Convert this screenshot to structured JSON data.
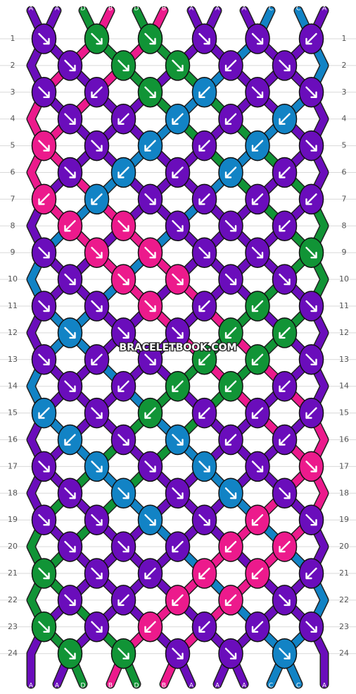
{
  "colors": {
    "A": "#6a0dbb",
    "B": "#ec1a8c",
    "C": "#1283c5",
    "D": "#119436"
  },
  "watermark": "BRACELETBOOK.COM",
  "top_labels": [
    "A",
    "A",
    "D",
    "B",
    "D",
    "B",
    "A",
    "A",
    "A",
    "C",
    "C",
    "A"
  ],
  "bottom_labels": [
    "A",
    "A",
    "D",
    "B",
    "D",
    "B",
    "A",
    "A",
    "A",
    "C",
    "C",
    "A"
  ],
  "row_labels": [
    "1",
    "2",
    "3",
    "4",
    "5",
    "6",
    "7",
    "8",
    "9",
    "10",
    "11",
    "12",
    "13",
    "14",
    "15",
    "16",
    "17",
    "18",
    "19",
    "20",
    "21",
    "22",
    "23",
    "24"
  ],
  "knot_rows": [
    [
      {
        "c": "A",
        "d": "R"
      },
      {
        "c": "D",
        "d": "R"
      },
      {
        "c": "D",
        "d": "R"
      },
      {
        "c": "A",
        "d": "R"
      }
    ],
    [
      {
        "c": "A",
        "d": "R"
      },
      {
        "c": "D",
        "d": "R"
      },
      {
        "c": "D",
        "d": "R"
      },
      {
        "c": "A",
        "d": "L"
      }
    ],
    [
      {
        "c": "A",
        "d": "R"
      },
      {
        "c": "D",
        "d": "R"
      },
      {
        "c": "A",
        "d": "L"
      },
      {
        "c": "C",
        "d": "L"
      }
    ],
    [
      {
        "c": "A",
        "d": "R"
      },
      {
        "c": "A",
        "d": "L"
      },
      {
        "c": "C",
        "d": "L"
      },
      {
        "c": "C",
        "d": "L"
      }
    ],
    [
      {
        "c": "A",
        "d": "R"
      },
      {
        "c": "C",
        "d": "L"
      },
      {
        "c": "C",
        "d": "L"
      },
      {
        "c": "A",
        "d": "L"
      }
    ],
    [
      {
        "c": "A",
        "d": "R"
      },
      {
        "c": "C",
        "d": "L"
      },
      {
        "c": "C",
        "d": "L"
      },
      {
        "c": "A",
        "d": "L"
      }
    ],
    [
      {
        "c": "B",
        "d": "L"
      },
      {
        "c": "A",
        "d": "R"
      },
      {
        "c": "C",
        "d": "L"
      },
      {
        "c": "A",
        "d": "L"
      }
    ],
    [
      {
        "c": "B",
        "d": "L"
      },
      {
        "c": "B",
        "d": "R"
      },
      {
        "c": "A",
        "d": "R"
      },
      {
        "c": "A",
        "d": "R"
      }
    ],
    [
      {
        "c": "A",
        "d": "R"
      },
      {
        "c": "B",
        "d": "R"
      },
      {
        "c": "B",
        "d": "R"
      },
      {
        "c": "A",
        "d": "R"
      }
    ],
    [
      {
        "c": "A",
        "d": "R"
      },
      {
        "c": "B",
        "d": "R"
      },
      {
        "c": "B",
        "d": "R"
      },
      {
        "c": "A",
        "d": "R"
      }
    ],
    [
      {
        "c": "A",
        "d": "R"
      },
      {
        "c": "B",
        "d": "R"
      },
      {
        "c": "A",
        "d": "R"
      },
      {
        "c": "D",
        "d": "L"
      }
    ],
    [
      {
        "c": "A",
        "d": "R"
      },
      {
        "c": "A",
        "d": "R"
      },
      {
        "c": "D",
        "d": "L"
      },
      {
        "c": "D",
        "d": "L"
      }
    ],
    [
      {
        "c": "A",
        "d": "R"
      },
      {
        "c": "D",
        "d": "L"
      },
      {
        "c": "D",
        "d": "L"
      },
      {
        "c": "A",
        "d": "L"
      }
    ],
    [
      {
        "c": "A",
        "d": "R"
      },
      {
        "c": "D",
        "d": "L"
      },
      {
        "c": "D",
        "d": "L"
      },
      {
        "c": "A",
        "d": "L"
      }
    ],
    [
      {
        "c": "C",
        "d": "L"
      },
      {
        "c": "A",
        "d": "R"
      },
      {
        "c": "D",
        "d": "L"
      },
      {
        "c": "A",
        "d": "L"
      }
    ],
    [
      {
        "c": "C",
        "d": "L"
      },
      {
        "c": "C",
        "d": "R"
      },
      {
        "c": "A",
        "d": "R"
      },
      {
        "c": "A",
        "d": "L"
      }
    ],
    [
      {
        "c": "A",
        "d": "R"
      },
      {
        "c": "C",
        "d": "R"
      },
      {
        "c": "C",
        "d": "R"
      },
      {
        "c": "A",
        "d": "R"
      }
    ],
    [
      {
        "c": "A",
        "d": "R"
      },
      {
        "c": "C",
        "d": "R"
      },
      {
        "c": "C",
        "d": "R"
      },
      {
        "c": "A",
        "d": "R"
      }
    ],
    [
      {
        "c": "A",
        "d": "R"
      },
      {
        "c": "C",
        "d": "R"
      },
      {
        "c": "A",
        "d": "R"
      },
      {
        "c": "B",
        "d": "L"
      }
    ],
    [
      {
        "c": "A",
        "d": "R"
      },
      {
        "c": "A",
        "d": "R"
      },
      {
        "c": "B",
        "d": "L"
      },
      {
        "c": "B",
        "d": "L"
      }
    ],
    [
      {
        "c": "A",
        "d": "R"
      },
      {
        "c": "B",
        "d": "L"
      },
      {
        "c": "B",
        "d": "L"
      },
      {
        "c": "A",
        "d": "L"
      }
    ],
    [
      {
        "c": "A",
        "d": "R"
      },
      {
        "c": "B",
        "d": "L"
      },
      {
        "c": "B",
        "d": "L"
      },
      {
        "c": "A",
        "d": "L"
      }
    ],
    [
      {
        "c": "D",
        "d": "R"
      },
      {
        "c": "A",
        "d": "R"
      },
      {
        "c": "B",
        "d": "L"
      },
      {
        "c": "A",
        "d": "L"
      }
    ],
    [
      {
        "c": "D",
        "d": "R"
      },
      {
        "c": "D",
        "d": "R"
      },
      {
        "c": "A",
        "d": "R"
      },
      {
        "c": "A",
        "d": "R"
      }
    ]
  ]
}
